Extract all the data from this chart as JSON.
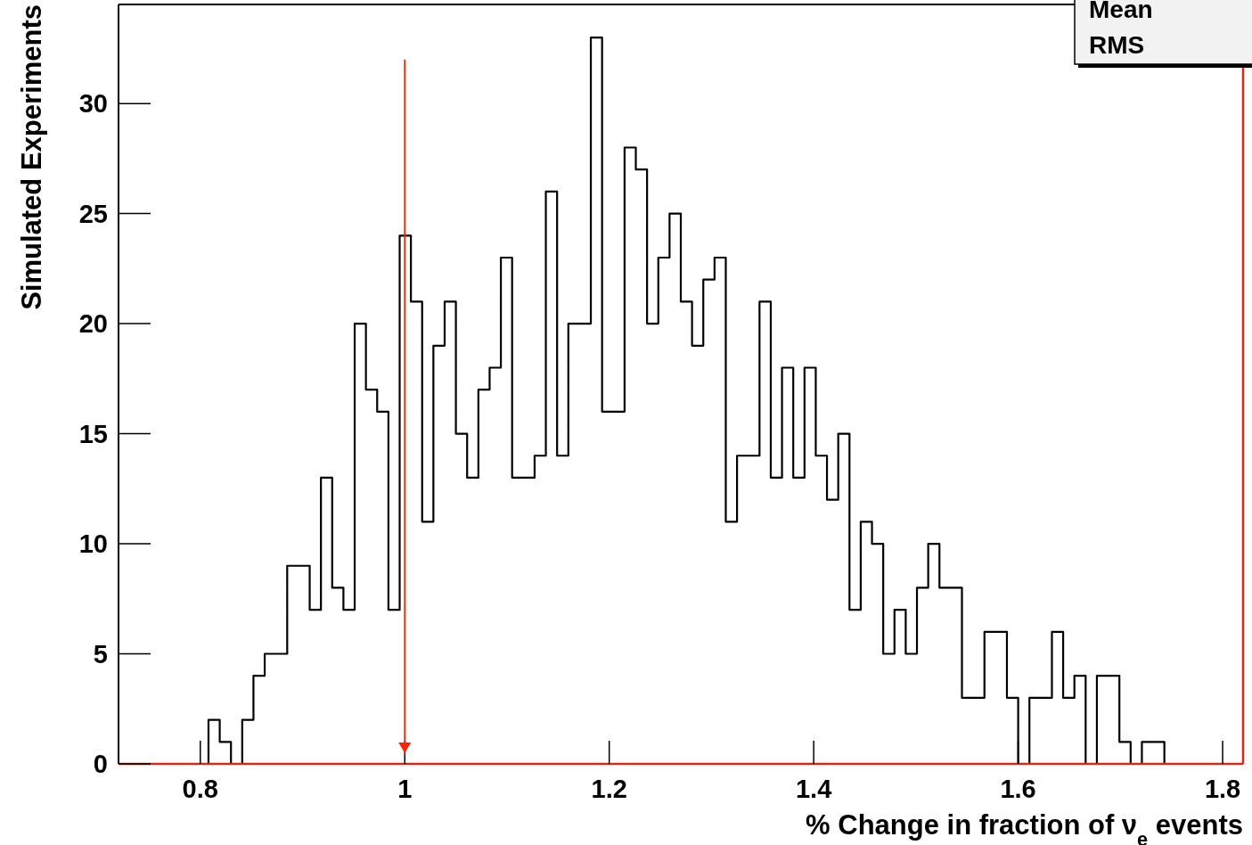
{
  "chart_data": {
    "type": "histogram",
    "xlabel": "% Change in fraction of ν$_{e}$ events",
    "ylabel": "Simulated Experiments",
    "bins": [
      0.72,
      0.731,
      0.742,
      0.753,
      0.764,
      0.775,
      0.786,
      0.797,
      0.808,
      0.819,
      0.83,
      0.841,
      0.852,
      0.863,
      0.874,
      0.885,
      0.896,
      0.907,
      0.918,
      0.929,
      0.94,
      0.951,
      0.962,
      0.973,
      0.984,
      0.995,
      1.006,
      1.017,
      1.028,
      1.039,
      1.05,
      1.061,
      1.072,
      1.083,
      1.094,
      1.105,
      1.116,
      1.127,
      1.138,
      1.149,
      1.16,
      1.171,
      1.182,
      1.193,
      1.204,
      1.215,
      1.226,
      1.237,
      1.248,
      1.259,
      1.27,
      1.281,
      1.292,
      1.303,
      1.314,
      1.325,
      1.336,
      1.347,
      1.358,
      1.369,
      1.38,
      1.391,
      1.402,
      1.413,
      1.424,
      1.435,
      1.446,
      1.457,
      1.468,
      1.479,
      1.49,
      1.501,
      1.512,
      1.523,
      1.534,
      1.545,
      1.556,
      1.567,
      1.578,
      1.589,
      1.6,
      1.611,
      1.622,
      1.633,
      1.644,
      1.655,
      1.666,
      1.677,
      1.688,
      1.699,
      1.71,
      1.721,
      1.732,
      1.743,
      1.754,
      1.765,
      1.776,
      1.787,
      1.798,
      1.809,
      1.82
    ],
    "values": [
      0,
      0,
      0,
      0,
      0,
      0,
      0,
      0,
      2,
      1,
      0,
      2,
      4,
      5,
      5,
      9,
      9,
      7,
      13,
      8,
      7,
      20,
      17,
      16,
      7,
      24,
      21,
      11,
      19,
      21,
      15,
      13,
      17,
      18,
      23,
      13,
      13,
      14,
      26,
      14,
      20,
      20,
      33,
      16,
      16,
      28,
      27,
      20,
      23,
      25,
      21,
      19,
      22,
      23,
      11,
      14,
      14,
      21,
      13,
      18,
      13,
      18,
      14,
      12,
      15,
      7,
      11,
      10,
      5,
      7,
      5,
      8,
      10,
      8,
      8,
      3,
      3,
      6,
      6,
      3,
      0,
      3,
      3,
      6,
      3,
      4,
      0,
      4,
      4,
      1,
      0,
      1,
      1,
      0,
      0,
      0,
      0,
      0,
      0,
      0
    ],
    "color": "#000000",
    "xlim": [
      0.72,
      1.82
    ],
    "xticks": [
      0.8,
      1,
      1.2,
      1.4,
      1.6,
      1.8
    ],
    "ylim": [
      0,
      34.5
    ],
    "yticks": [
      0,
      5,
      10,
      15,
      20,
      25,
      30
    ],
    "grid": false,
    "ref_lines": [
      {
        "axis": "x",
        "value": 1,
        "color": "#ff2200"
      }
    ],
    "annotations": [
      "Mean",
      "RMS"
    ]
  }
}
